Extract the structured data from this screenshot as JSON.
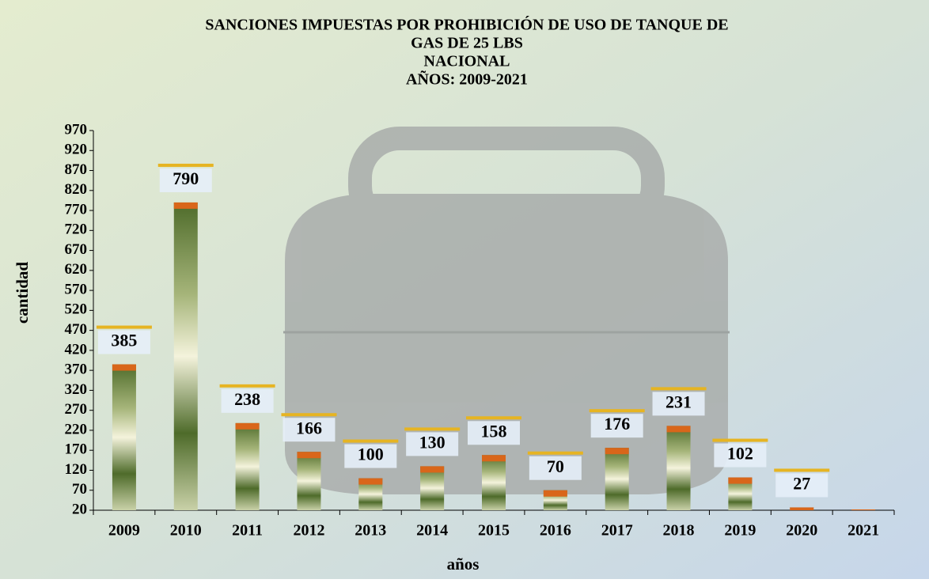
{
  "chart_data": {
    "type": "bar",
    "title": [
      "SANCIONES IMPUESTAS POR PROHIBICIÓN DE USO DE TANQUE DE",
      "GAS DE 25 LBS",
      "NACIONAL",
      "AÑOS: 2009-2021"
    ],
    "x_label": "años",
    "y_label": "cantidad",
    "categories": [
      "2009",
      "2010",
      "2011",
      "2012",
      "2013",
      "2014",
      "2015",
      "2016",
      "2017",
      "2018",
      "2019",
      "2020",
      "2021"
    ],
    "values": [
      385,
      790,
      238,
      166,
      100,
      130,
      158,
      70,
      176,
      231,
      102,
      27,
      22
    ],
    "value_labels": [
      "385",
      "790",
      "238",
      "166",
      "100",
      "130",
      "158",
      "70",
      "176",
      "231",
      "102",
      "27",
      null
    ],
    "color": "#4e6b2a",
    "ylim": [
      20,
      970
    ],
    "yticks": [
      20,
      70,
      120,
      170,
      220,
      270,
      320,
      370,
      420,
      470,
      520,
      570,
      620,
      670,
      720,
      770,
      820,
      870,
      920,
      970
    ]
  }
}
